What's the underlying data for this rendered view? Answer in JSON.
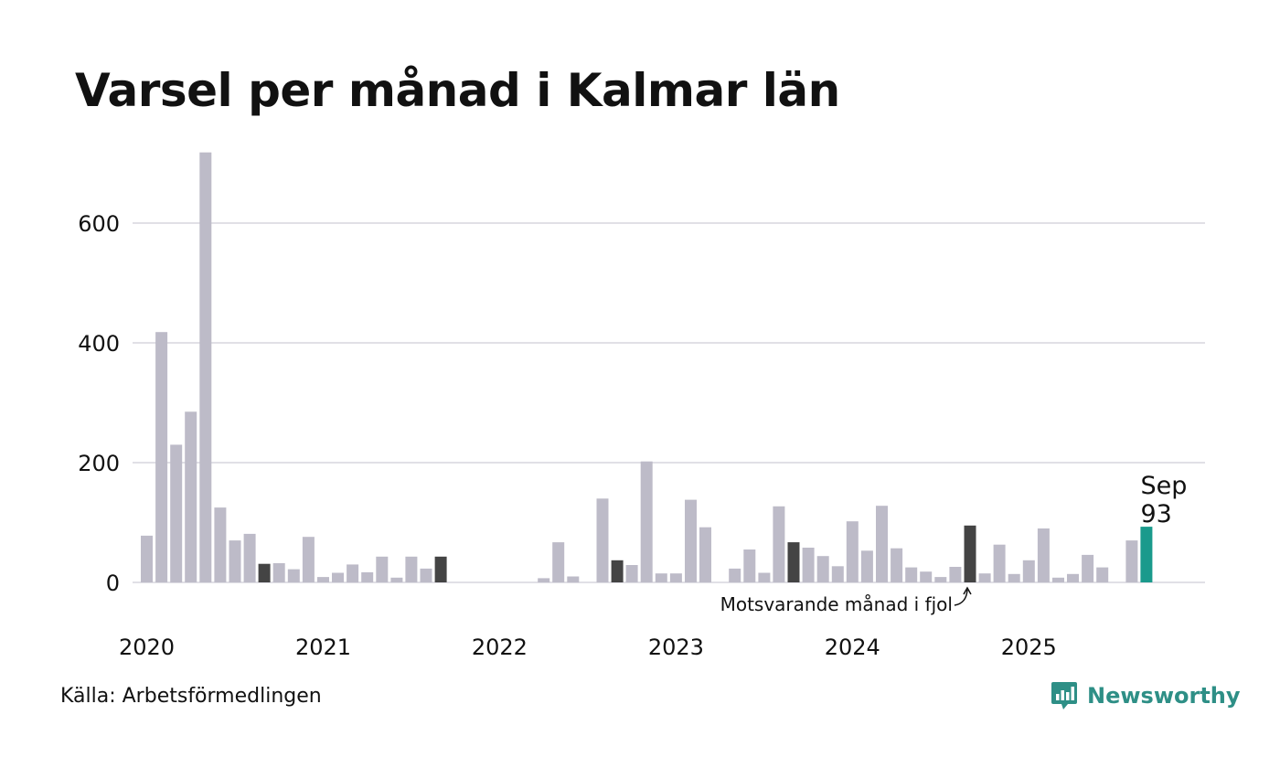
{
  "title": "Varsel per månad i Kalmar län",
  "source": "Källa: Arbetsförmedlingen",
  "brand": "Newsworthy",
  "annotation_text": "Motsvarande månad i fjol",
  "colors": {
    "default": "#bdbbc8",
    "highlight": "#444444",
    "current": "#1a9a8c",
    "grid": "#e1e0e6"
  },
  "chart_data": {
    "type": "bar",
    "title": "Varsel per månad i Kalmar län",
    "xlabel": "",
    "ylabel": "",
    "ylim": [
      0,
      720
    ],
    "yticks": [
      0,
      200,
      400,
      600
    ],
    "year_ticks": [
      "2020",
      "2021",
      "2022",
      "2023",
      "2024",
      "2025"
    ],
    "months": [
      "2020-01",
      "2020-02",
      "2020-03",
      "2020-04",
      "2020-05",
      "2020-06",
      "2020-07",
      "2020-08",
      "2020-09",
      "2020-10",
      "2020-11",
      "2020-12",
      "2021-01",
      "2021-02",
      "2021-03",
      "2021-04",
      "2021-05",
      "2021-06",
      "2021-07",
      "2021-08",
      "2021-09",
      "2021-10",
      "2021-11",
      "2021-12",
      "2022-01",
      "2022-02",
      "2022-03",
      "2022-04",
      "2022-05",
      "2022-06",
      "2022-07",
      "2022-08",
      "2022-09",
      "2022-10",
      "2022-11",
      "2022-12",
      "2023-01",
      "2023-02",
      "2023-03",
      "2023-04",
      "2023-05",
      "2023-06",
      "2023-07",
      "2023-08",
      "2023-09",
      "2023-10",
      "2023-11",
      "2023-12",
      "2024-01",
      "2024-02",
      "2024-03",
      "2024-04",
      "2024-05",
      "2024-06",
      "2024-07",
      "2024-08",
      "2024-09",
      "2024-10",
      "2024-11",
      "2024-12",
      "2025-01",
      "2025-02",
      "2025-03",
      "2025-04",
      "2025-05",
      "2025-06",
      "2025-07",
      "2025-08",
      "2025-09"
    ],
    "values": [
      78,
      418,
      230,
      285,
      718,
      125,
      70,
      81,
      31,
      32,
      22,
      76,
      9,
      16,
      30,
      17,
      43,
      8,
      43,
      23,
      43,
      0,
      0,
      0,
      0,
      0,
      0,
      7,
      67,
      10,
      0,
      140,
      37,
      29,
      202,
      15,
      15,
      138,
      92,
      0,
      23,
      55,
      16,
      127,
      67,
      58,
      44,
      27,
      102,
      53,
      128,
      57,
      25,
      18,
      9,
      26,
      95,
      15,
      63,
      14,
      37,
      90,
      8,
      14,
      46,
      25,
      0,
      70,
      93
    ],
    "highlight_months": [
      "2020-09",
      "2021-09",
      "2022-09",
      "2023-09",
      "2024-09"
    ],
    "current": {
      "month": "2025-09",
      "label": "Sep",
      "value": 93
    }
  }
}
